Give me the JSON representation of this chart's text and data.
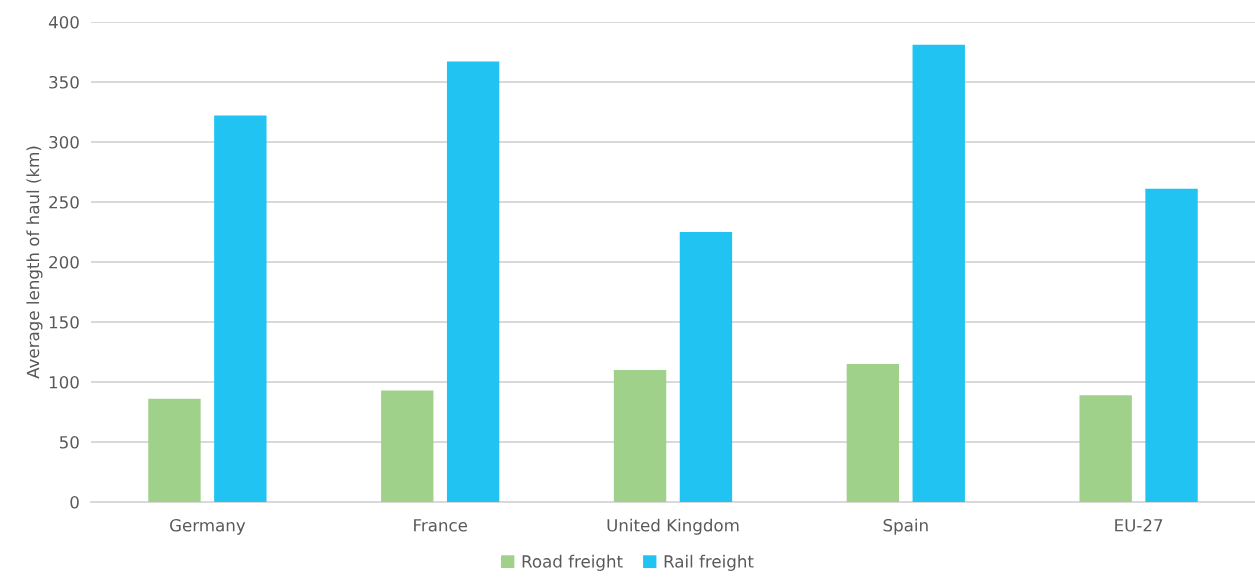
{
  "chart_data": {
    "type": "bar",
    "ylabel": "Average length of haul (km)",
    "categories": [
      "Germany",
      "France",
      "United Kingdom",
      "Spain",
      "EU-27"
    ],
    "series": [
      {
        "name": "Road freight",
        "color": "#a0d18a",
        "values": [
          86,
          93,
          110,
          115,
          89
        ]
      },
      {
        "name": "Rail freight",
        "color": "#20c3f2",
        "values": [
          322,
          367,
          225,
          381,
          261
        ]
      }
    ],
    "ylim": [
      0,
      400
    ],
    "yticks": [
      0,
      50,
      100,
      150,
      200,
      250,
      300,
      350,
      400
    ],
    "grid": "y",
    "legend": "bottom"
  }
}
